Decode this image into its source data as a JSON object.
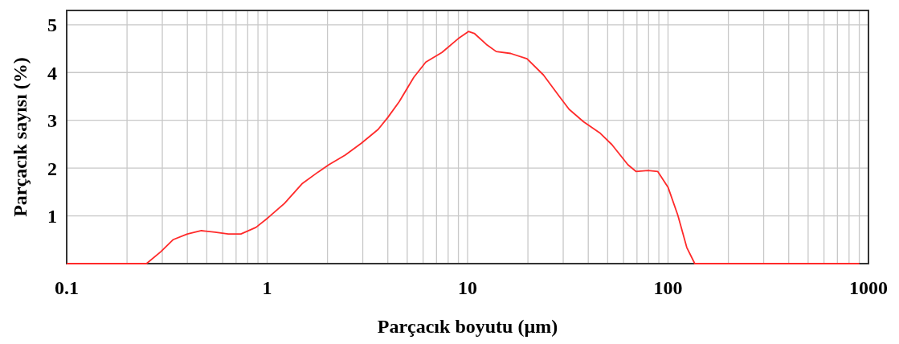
{
  "chart_data": {
    "type": "line",
    "xlabel": "Parçacık boyutu (µm)",
    "ylabel": "Parçacık sayısı (%)",
    "log": "x",
    "xlim": [
      0.1,
      1000
    ],
    "xticks": [
      0.1,
      1,
      10,
      100,
      1000
    ],
    "ylim": [
      0,
      5.3
    ],
    "yticks": [
      {
        "value": 0,
        "label": null
      },
      1,
      2,
      3,
      4,
      5
    ],
    "grid": true,
    "marker": "none",
    "line_style": "solid",
    "series": [
      {
        "color": "#ff2a2a",
        "x": [
          0.1,
          0.25,
          0.295,
          0.339,
          0.4,
          0.47,
          0.55,
          0.64,
          0.74,
          0.88,
          1.01,
          1.22,
          1.5,
          1.8,
          2.03,
          2.45,
          2.95,
          3.58,
          4.0,
          4.56,
          5.39,
          6.19,
          7.45,
          8.98,
          10.1,
          10.8,
          12.4,
          13.9,
          16.4,
          19.8,
          23.9,
          28.7,
          32.1,
          37.9,
          45.6,
          52.5,
          63.1,
          69.2,
          79.5,
          88.8,
          100,
          112,
          124,
          136,
          900
        ],
        "values": [
          0,
          0,
          0.25,
          0.5,
          0.62,
          0.69,
          0.66,
          0.62,
          0.62,
          0.76,
          0.96,
          1.26,
          1.68,
          1.92,
          2.07,
          2.27,
          2.52,
          2.81,
          3.06,
          3.39,
          3.9,
          4.22,
          4.42,
          4.71,
          4.86,
          4.82,
          4.59,
          4.44,
          4.4,
          4.29,
          3.95,
          3.5,
          3.23,
          2.97,
          2.74,
          2.49,
          2.07,
          1.93,
          1.95,
          1.93,
          1.6,
          1.01,
          0.34,
          0,
          0
        ]
      }
    ]
  }
}
